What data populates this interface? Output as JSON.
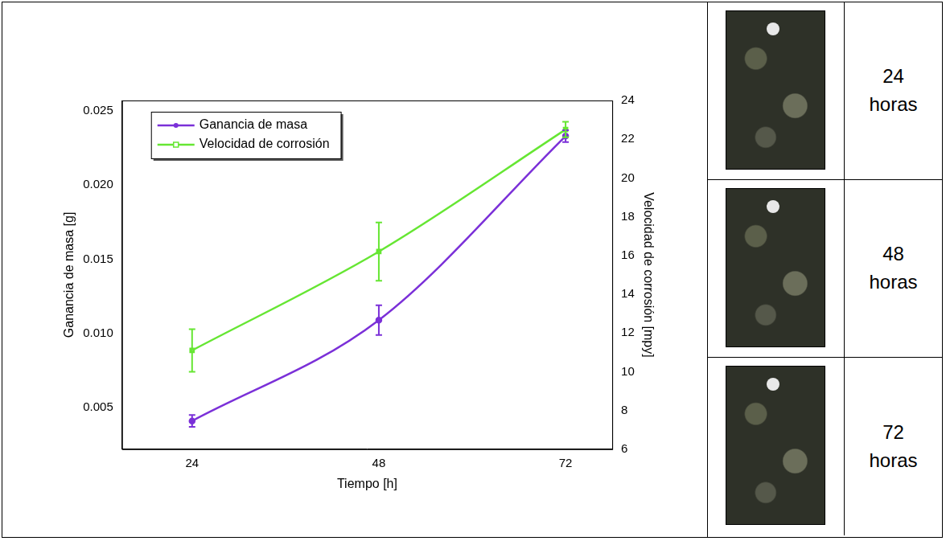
{
  "chart_data": {
    "type": "line",
    "x_label": "Tiempo [h]",
    "y_label": "Ganancia de masa [g]",
    "y2_label": "Velocidad de corrosión [mpy]",
    "x": [
      24,
      48,
      72
    ],
    "xlim": [
      15,
      78
    ],
    "xticks": [
      24,
      48,
      72
    ],
    "ylim": [
      0.0022,
      0.0257
    ],
    "yticks": [
      0.005,
      {
        "value": 0.01,
        "label": "0.010"
      },
      0.015,
      {
        "value": 0.02,
        "label": "0.020"
      },
      0.025
    ],
    "y2lim": [
      6,
      24
    ],
    "y2ticks": [
      6,
      8,
      10,
      12,
      14,
      16,
      18,
      20,
      22,
      24
    ],
    "grid": false,
    "legend": "upper left",
    "series": [
      {
        "name": "Ganancia de masa",
        "color": "#7b30d8",
        "marker": "circle",
        "values": [
          0.0041,
          0.0109,
          0.0233
        ],
        "errors": [
          0.0004,
          0.001,
          0.0004
        ]
      },
      {
        "name": "Velocidad de corrosión",
        "color": "#66e633",
        "marker": "square",
        "values": [
          11.1,
          16.2,
          22.5
        ],
        "errors": [
          1.1,
          1.5,
          0.4
        ],
        "axis": "y2"
      }
    ]
  },
  "photos": {
    "labels": [
      "24 horas",
      "48 horas",
      "72 horas"
    ]
  }
}
